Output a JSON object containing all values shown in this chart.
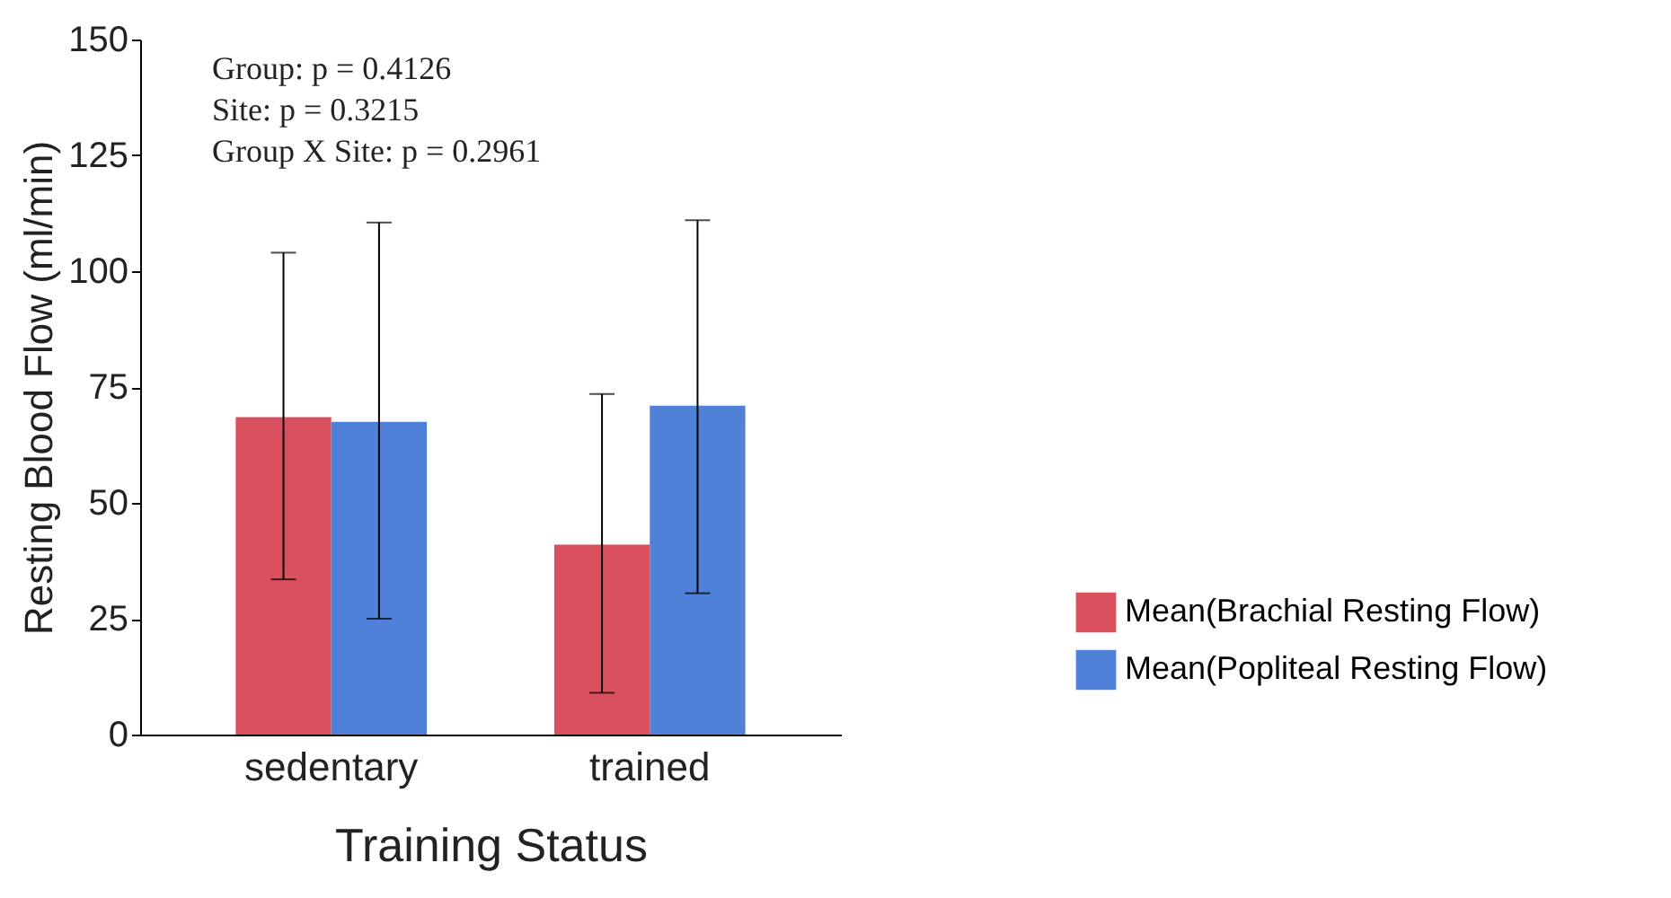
{
  "chart_data": {
    "type": "bar",
    "xlabel": "Training Status",
    "ylabel": "Resting Blood Flow (ml/min)",
    "categories": [
      "sedentary",
      "trained"
    ],
    "series": [
      {
        "name": "Mean(Brachial Resting Flow)",
        "color": "#d9515f",
        "values": [
          68.5,
          41
        ],
        "errors": [
          [
            33.5,
            104
          ],
          [
            9,
            73.5
          ]
        ]
      },
      {
        "name": "Mean(Popliteal Resting Flow)",
        "color": "#4f81d9",
        "values": [
          67.5,
          71
        ],
        "errors": [
          [
            25,
            110.5
          ],
          [
            30.5,
            111
          ]
        ]
      }
    ],
    "ylim": [
      0,
      150
    ],
    "yticks": [
      0,
      25,
      50,
      75,
      100,
      125,
      150
    ],
    "grid": false,
    "legend": "right",
    "annotations": [
      "Group: p = 0.4126",
      "Site: p = 0.3215",
      "Group X Site: p = 0.2961"
    ]
  }
}
